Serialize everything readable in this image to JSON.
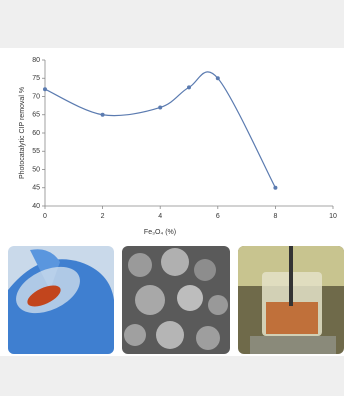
{
  "chart_data": {
    "type": "line",
    "x_label": "Fe₃O₄ (%)",
    "y_label": "Photocatalytic CIP removal %",
    "x": [
      0,
      2,
      4,
      5,
      6,
      8
    ],
    "values": [
      72,
      65,
      67,
      72.5,
      75,
      45
    ],
    "color": "#5b7bb0",
    "xlim": [
      0,
      10
    ],
    "xticks": [
      0,
      2,
      4,
      6,
      8,
      10
    ],
    "ylim": [
      40,
      80
    ],
    "yticks": [
      40,
      45,
      50,
      55,
      60,
      65,
      70,
      75,
      80
    ],
    "smooth": true
  }
}
